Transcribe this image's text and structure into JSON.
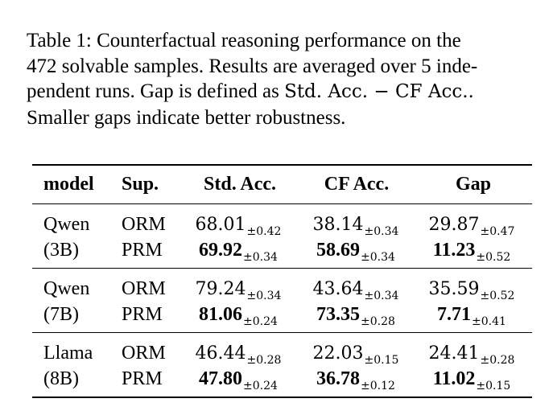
{
  "caption": {
    "lines": [
      "Table 1: Counterfactual reasoning performance on the",
      "472 solvable samples. Results are averaged over 5 inde-",
      "pendent runs. Gap is defined as ",
      "Smaller gaps indicate better robustness."
    ],
    "gap_formula": "Std. Acc. − CF Acc..",
    "line3_prefix": "pendent runs. Gap is defined as "
  },
  "table": {
    "headers": [
      "model",
      "Sup.",
      "Std. Acc.",
      "CF Acc.",
      "Gap"
    ],
    "groups": [
      {
        "model_line1": "Qwen",
        "model_line2": "(3B)",
        "rows": [
          {
            "sup": "ORM",
            "std": "68.01",
            "std_pm": "±0.42",
            "cf": "38.14",
            "cf_pm": "±0.34",
            "gap": "29.87",
            "gap_pm": "±0.47",
            "bold": false
          },
          {
            "sup": "PRM",
            "std": "69.92",
            "std_pm": "±0.34",
            "cf": "58.69",
            "cf_pm": "±0.34",
            "gap": "11.23",
            "gap_pm": "±0.52",
            "bold": true
          }
        ]
      },
      {
        "model_line1": "Qwen",
        "model_line2": "(7B)",
        "rows": [
          {
            "sup": "ORM",
            "std": "79.24",
            "std_pm": "±0.34",
            "cf": "43.64",
            "cf_pm": "±0.34",
            "gap": "35.59",
            "gap_pm": "±0.52",
            "bold": false
          },
          {
            "sup": "PRM",
            "std": "81.06",
            "std_pm": "±0.24",
            "cf": "73.35",
            "cf_pm": "±0.28",
            "gap": "7.71",
            "gap_pm": "±0.41",
            "bold": true
          }
        ]
      },
      {
        "model_line1": "Llama",
        "model_line2": "(8B)",
        "rows": [
          {
            "sup": "ORM",
            "std": "46.44",
            "std_pm": "±0.28",
            "cf": "22.03",
            "cf_pm": "±0.15",
            "gap": "24.41",
            "gap_pm": "±0.28",
            "bold": false
          },
          {
            "sup": "PRM",
            "std": "47.80",
            "std_pm": "±0.24",
            "cf": "36.78",
            "cf_pm": "±0.12",
            "gap": "11.02",
            "gap_pm": "±0.15",
            "bold": true
          }
        ]
      }
    ]
  }
}
